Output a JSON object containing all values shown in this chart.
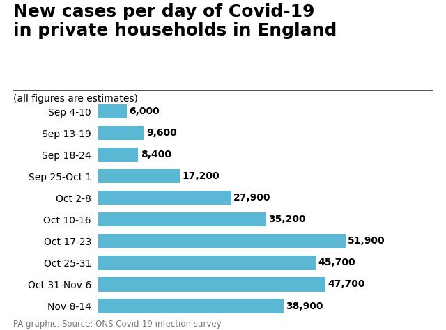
{
  "title_line1": "New cases per day of Covid-19",
  "title_line2": "in private households in England",
  "subtitle": "(all figures are estimates)",
  "footer": "PA graphic. Source: ONS Covid-19 infection survey",
  "categories": [
    "Sep 4-10",
    "Sep 13-19",
    "Sep 18-24",
    "Sep 25-Oct 1",
    "Oct 2-8",
    "Oct 10-16",
    "Oct 17-23",
    "Oct 25-31",
    "Oct 31-Nov 6",
    "Nov 8-14"
  ],
  "values": [
    6000,
    9600,
    8400,
    17200,
    27900,
    35200,
    51900,
    45700,
    47700,
    38900
  ],
  "labels": [
    "6,000",
    "9,600",
    "8,400",
    "17,200",
    "27,900",
    "35,200",
    "51,900",
    "45,700",
    "47,700",
    "38,900"
  ],
  "bar_color": "#5bb8d4",
  "background_color": "#ffffff",
  "title_fontsize": 18,
  "subtitle_fontsize": 10,
  "label_fontsize": 10,
  "tick_fontsize": 10,
  "footer_fontsize": 8.5,
  "xlim": [
    0,
    58000
  ]
}
